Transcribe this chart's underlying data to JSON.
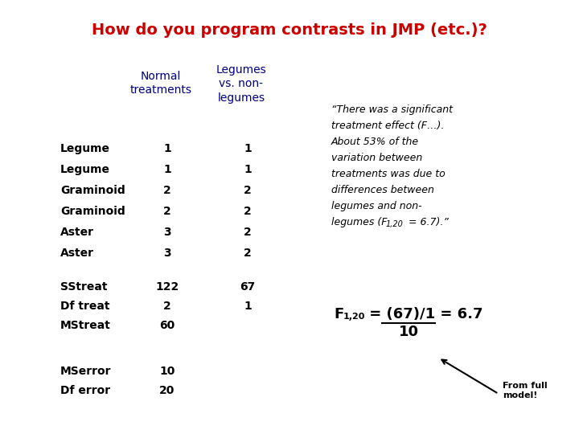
{
  "title": "How do you program contrasts in JMP (etc.)?",
  "title_color": "#CC0000",
  "bg_color": "#FFFFFF",
  "col_header_normal": "Normal\ntreatments",
  "col_header_legumes": "Legumes\nvs. non-\nlegumes",
  "table_rows": [
    [
      "Legume",
      "1",
      "1"
    ],
    [
      "Legume",
      "1",
      "1"
    ],
    [
      "Graminoid",
      "2",
      "2"
    ],
    [
      "Graminoid",
      "2",
      "2"
    ],
    [
      "Aster",
      "3",
      "2"
    ],
    [
      "Aster",
      "3",
      "2"
    ]
  ],
  "stats_rows": [
    [
      "SStreat",
      "122",
      "67"
    ],
    [
      "Df treat",
      "2",
      "1"
    ],
    [
      "MStreat",
      "60",
      ""
    ]
  ],
  "error_rows": [
    [
      "MSerror",
      "10",
      ""
    ],
    [
      "Df error",
      "20",
      ""
    ]
  ],
  "label_color": "#000080",
  "text_color": "#000000",
  "bold_color": "#000000",
  "quote_color": "#000000",
  "title_fontsize": 14,
  "table_fontsize": 10,
  "header_fontsize": 10,
  "quote_fontsize": 9,
  "formula_fontsize": 13,
  "formula_sub_fontsize": 8,
  "note_fontsize": 8
}
